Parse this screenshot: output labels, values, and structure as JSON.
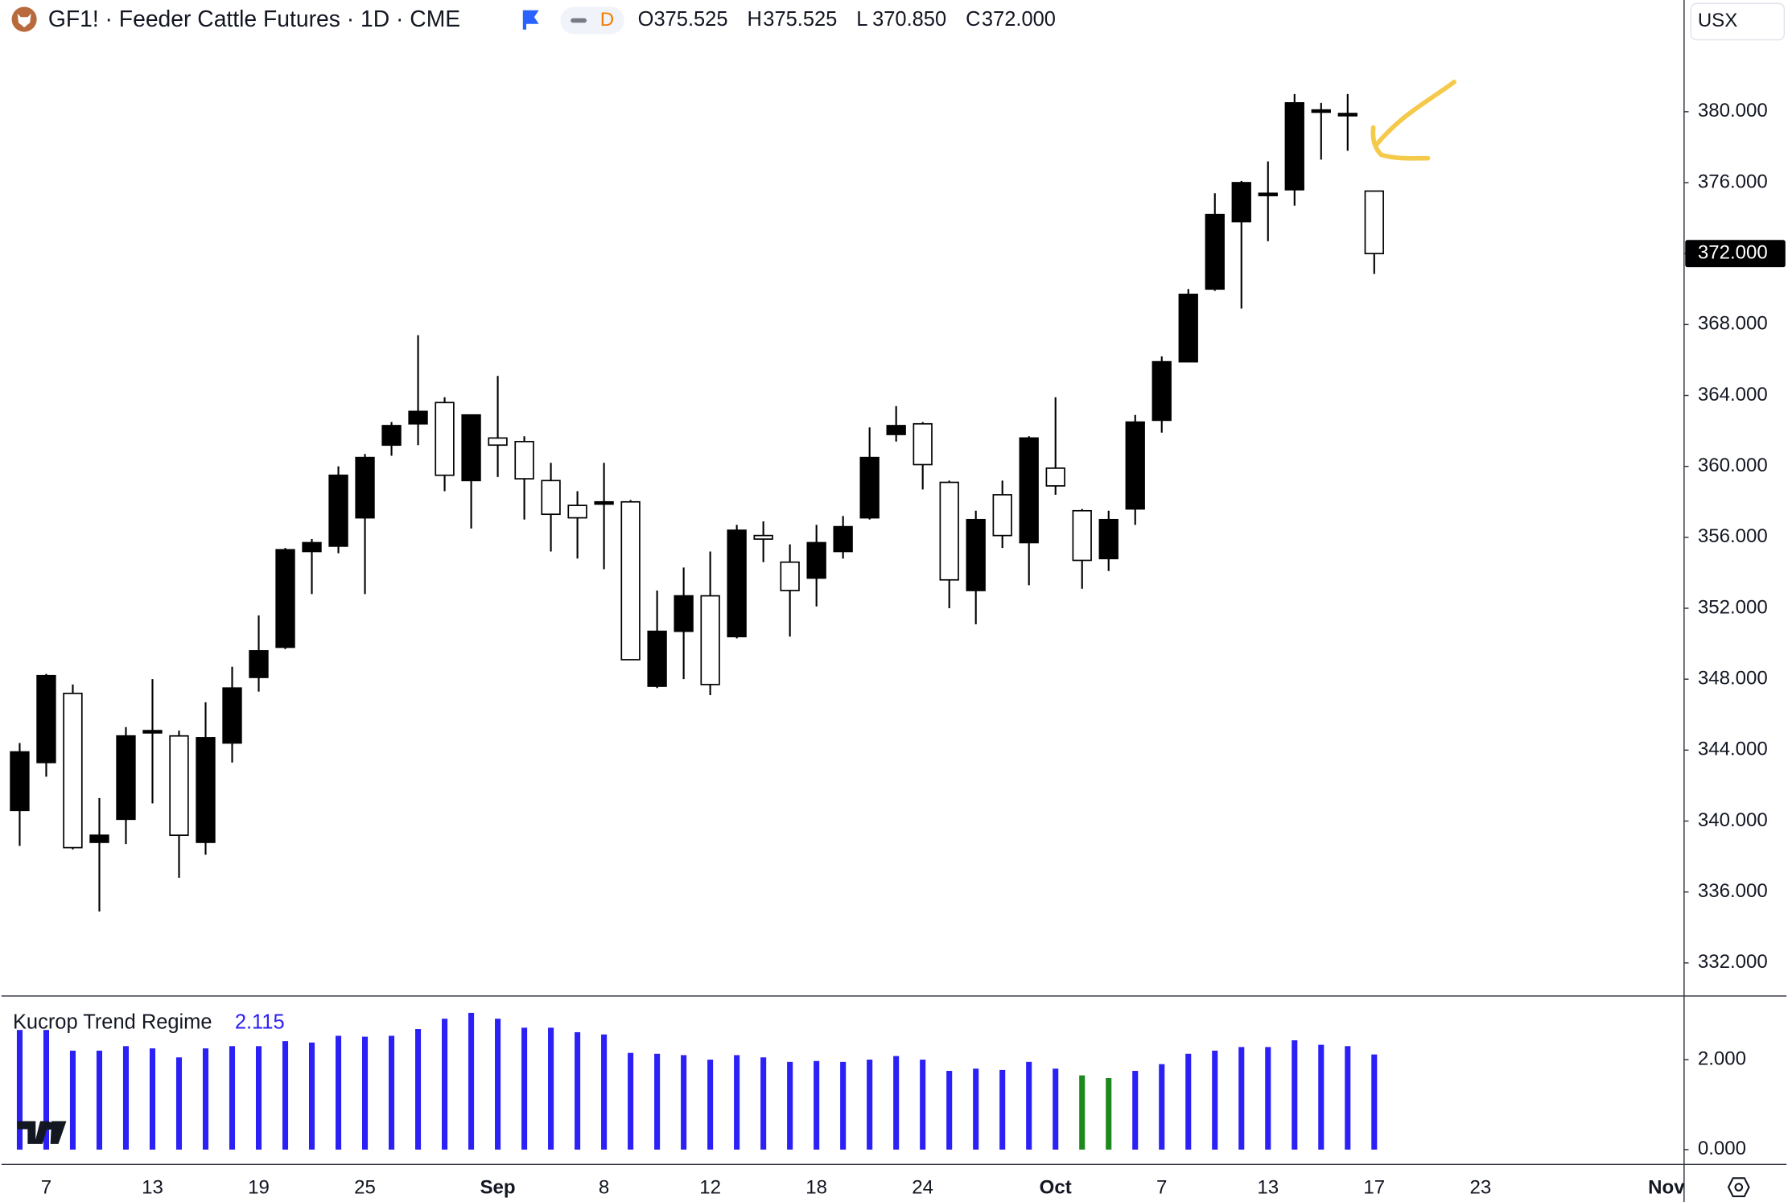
{
  "header": {
    "symbol": "GF1! · Feeder Cattle Futures · 1D · CME",
    "badge": "D",
    "ohlc": [
      {
        "key": "O",
        "text": "375.525"
      },
      {
        "key": "H",
        "text": "375.525"
      },
      {
        "key": "L",
        "text": "370.850"
      },
      {
        "key": "C",
        "text": "372.000"
      }
    ],
    "currency": "USX"
  },
  "chart_data": [
    {
      "type": "candlestick",
      "color": "#000000",
      "categories": [
        null,
        "7",
        null,
        null,
        null,
        "13",
        null,
        null,
        null,
        "19",
        null,
        null,
        null,
        "25",
        null,
        null,
        null,
        null,
        "Sep",
        null,
        null,
        null,
        "8",
        null,
        null,
        null,
        "12",
        null,
        null,
        null,
        "18",
        null,
        null,
        null,
        "24",
        null,
        null,
        null,
        null,
        "Oct",
        null,
        null,
        null,
        "7",
        null,
        null,
        null,
        "13",
        null,
        null,
        null,
        "17",
        null,
        null,
        null,
        "23",
        null,
        null,
        null,
        null,
        null,
        null,
        "Nov"
      ],
      "open": [
        340.6,
        343.3,
        347.2,
        338.8,
        340.1,
        345.0,
        344.8,
        338.8,
        344.4,
        348.1,
        349.8,
        355.2,
        355.5,
        357.1,
        361.2,
        362.4,
        363.6,
        359.2,
        361.6,
        361.4,
        359.2,
        357.8,
        357.9,
        358.0,
        347.6,
        350.7,
        352.7,
        350.4,
        356.1,
        354.6,
        353.7,
        355.2,
        357.1,
        361.8,
        362.4,
        359.1,
        353.0,
        358.4,
        355.7,
        359.9,
        357.5,
        354.8,
        357.6,
        362.6,
        365.9,
        370.0,
        373.8,
        375.3,
        375.6,
        380.0,
        379.8,
        375.525,
        null,
        null,
        null,
        null,
        null,
        null,
        null,
        null,
        null,
        null,
        null
      ],
      "high": [
        344.4,
        348.3,
        347.7,
        341.3,
        345.3,
        348.0,
        345.1,
        346.7,
        348.7,
        351.6,
        355.4,
        355.9,
        360.0,
        360.7,
        362.5,
        367.4,
        363.9,
        362.9,
        365.1,
        361.7,
        360.2,
        358.6,
        360.2,
        358.1,
        353.0,
        354.3,
        355.2,
        356.7,
        356.9,
        355.6,
        356.7,
        357.2,
        362.2,
        363.4,
        362.5,
        359.2,
        357.5,
        359.2,
        361.7,
        363.9,
        357.6,
        357.5,
        362.9,
        366.2,
        370.0,
        375.4,
        376.1,
        377.2,
        381.0,
        380.5,
        381.0,
        375.525,
        null,
        null,
        null,
        null,
        null,
        null,
        null,
        null,
        null,
        null,
        null
      ],
      "low": [
        338.6,
        342.5,
        338.4,
        334.9,
        338.7,
        341.0,
        336.8,
        338.1,
        343.3,
        347.3,
        349.7,
        352.8,
        355.1,
        352.8,
        360.6,
        361.2,
        358.6,
        356.5,
        359.4,
        357.0,
        355.2,
        354.8,
        354.2,
        349.1,
        347.5,
        348.0,
        347.1,
        350.3,
        354.6,
        350.4,
        352.1,
        354.8,
        357.0,
        361.4,
        358.7,
        352.0,
        351.1,
        355.4,
        353.3,
        358.4,
        353.1,
        354.1,
        356.7,
        361.9,
        365.9,
        369.9,
        368.9,
        372.7,
        374.7,
        377.3,
        377.8,
        370.85,
        null,
        null,
        null,
        null,
        null,
        null,
        null,
        null,
        null,
        null,
        null
      ],
      "close": [
        343.9,
        348.2,
        338.5,
        339.2,
        344.8,
        345.1,
        339.2,
        344.7,
        347.5,
        349.6,
        355.3,
        355.7,
        359.5,
        360.5,
        362.3,
        363.1,
        359.5,
        362.9,
        361.2,
        359.3,
        357.3,
        357.1,
        358.0,
        349.1,
        350.7,
        352.7,
        347.7,
        356.4,
        355.9,
        353.0,
        355.7,
        356.6,
        360.5,
        362.3,
        360.1,
        353.6,
        357.0,
        356.1,
        361.6,
        358.9,
        354.7,
        357.0,
        362.5,
        365.9,
        369.7,
        374.2,
        376.0,
        375.4,
        380.5,
        380.1,
        379.9,
        372.0,
        null,
        null,
        null,
        null,
        null,
        null,
        null,
        null,
        null,
        null,
        null
      ],
      "last_price_label": "372.000",
      "ylim": [
        330.2,
        386.3
      ],
      "yticks": [
        {
          "value": 332,
          "label": "332.000"
        },
        {
          "value": 336,
          "label": "336.000"
        },
        {
          "value": 340,
          "label": "340.000"
        },
        {
          "value": 344,
          "label": "344.000"
        },
        {
          "value": 348,
          "label": "348.000"
        },
        {
          "value": 352,
          "label": "352.000"
        },
        {
          "value": 356,
          "label": "356.000"
        },
        {
          "value": 360,
          "label": "360.000"
        },
        {
          "value": 364,
          "label": "364.000"
        },
        {
          "value": 368,
          "label": "368.000"
        },
        {
          "value": 372,
          "label": "372.000"
        },
        {
          "value": 376,
          "label": "376.000"
        },
        {
          "value": 380,
          "label": "380.000"
        }
      ],
      "grid": false
    },
    {
      "type": "bar",
      "title": "Kucrop Trend Regime",
      "value_color": "#2b20f5",
      "values": [
        2.66,
        2.66,
        2.2,
        2.2,
        2.3,
        2.25,
        2.05,
        2.25,
        2.3,
        2.3,
        2.41,
        2.38,
        2.53,
        2.51,
        2.53,
        2.68,
        2.91,
        3.04,
        2.91,
        2.71,
        2.71,
        2.61,
        2.56,
        2.15,
        2.13,
        2.1,
        2.0,
        2.1,
        2.05,
        1.95,
        1.97,
        1.95,
        2.0,
        2.08,
        2.0,
        1.75,
        1.8,
        1.77,
        1.95,
        1.8,
        1.65,
        1.59,
        1.75,
        1.9,
        2.13,
        2.2,
        2.28,
        2.28,
        2.43,
        2.33,
        2.3,
        2.115
      ],
      "colors": [
        "#2b20f5",
        "#2b20f5",
        "#2b20f5",
        "#2b20f5",
        "#2b20f5",
        "#2b20f5",
        "#2b20f5",
        "#2b20f5",
        "#2b20f5",
        "#2b20f5",
        "#2b20f5",
        "#2b20f5",
        "#2b20f5",
        "#2b20f5",
        "#2b20f5",
        "#2b20f5",
        "#2b20f5",
        "#2b20f5",
        "#2b20f5",
        "#2b20f5",
        "#2b20f5",
        "#2b20f5",
        "#2b20f5",
        "#2b20f5",
        "#2b20f5",
        "#2b20f5",
        "#2b20f5",
        "#2b20f5",
        "#2b20f5",
        "#2b20f5",
        "#2b20f5",
        "#2b20f5",
        "#2b20f5",
        "#2b20f5",
        "#2b20f5",
        "#2b20f5",
        "#2b20f5",
        "#2b20f5",
        "#2b20f5",
        "#2b20f5",
        "#1e8a1e",
        "#1e8a1e",
        "#2b20f5",
        "#2b20f5",
        "#2b20f5",
        "#2b20f5",
        "#2b20f5",
        "#2b20f5",
        "#2b20f5",
        "#2b20f5",
        "#2b20f5",
        "#2b20f5"
      ],
      "ylim": [
        -0.33,
        3.39
      ],
      "yticks": [
        {
          "value": 0,
          "label": "0.000"
        },
        {
          "value": 2,
          "label": "2.000"
        }
      ]
    }
  ]
}
